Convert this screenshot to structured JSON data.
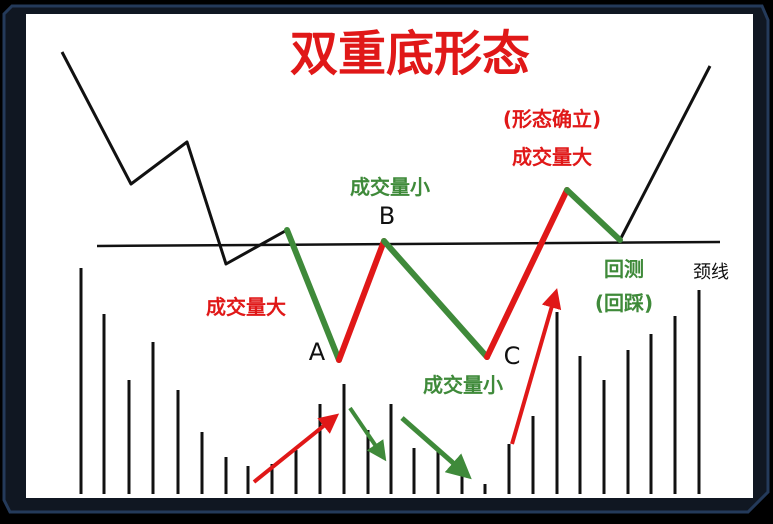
{
  "title": "双重底形态",
  "labels": {
    "volume_high_left": "成交量大",
    "point_a": "A",
    "point_b": "B",
    "point_c": "C",
    "volume_low_b": "成交量小",
    "volume_low_c": "成交量小",
    "pattern_confirmed": "(形态确立)",
    "volume_high_right": "成交量大",
    "pullback_line1": "回测",
    "pullback_line2": "(回踩)",
    "neckline": "颈线"
  },
  "colors": {
    "background": "#ffffff",
    "frame": "#1b2f4a",
    "price_line": "#111111",
    "rise": "#e01818",
    "fall": "#3f8a3a"
  },
  "icons": [
    "red-arrow-up-icon",
    "green-arrow-down-icon"
  ]
}
